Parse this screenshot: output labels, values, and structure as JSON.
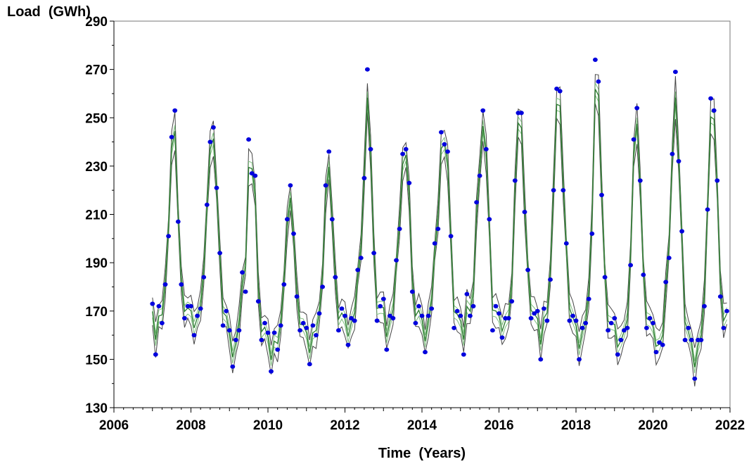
{
  "chart_data": {
    "type": "line",
    "ylabel": "Load  (GWh)",
    "xlabel": "Time  (Years)",
    "xlim": [
      2006,
      2022
    ],
    "ylim": [
      130,
      290
    ],
    "x_ticks": [
      2006,
      2008,
      2010,
      2012,
      2014,
      2016,
      2018,
      2020,
      2022
    ],
    "y_ticks": [
      130,
      150,
      170,
      190,
      210,
      230,
      250,
      270,
      290
    ],
    "grid": false,
    "colors": {
      "points": "#0000dd",
      "bands": "#444444",
      "fitted": "#2e7d32",
      "inner_band": "#7fbf7f"
    },
    "series": [
      {
        "style": "points",
        "x": [
          2007.0,
          2007.083,
          2007.167,
          2007.25,
          2007.333,
          2007.417,
          2007.5,
          2007.583,
          2007.667,
          2007.75,
          2007.833,
          2007.917,
          2008.0,
          2008.083,
          2008.167,
          2008.25,
          2008.333,
          2008.417,
          2008.5,
          2008.583,
          2008.667,
          2008.75,
          2008.833,
          2008.917,
          2009.0,
          2009.083,
          2009.167,
          2009.25,
          2009.333,
          2009.417,
          2009.5,
          2009.583,
          2009.667,
          2009.75,
          2009.833,
          2009.917,
          2010.0,
          2010.083,
          2010.167,
          2010.25,
          2010.333,
          2010.417,
          2010.5,
          2010.583,
          2010.667,
          2010.75,
          2010.833,
          2010.917,
          2011.0,
          2011.083,
          2011.167,
          2011.25,
          2011.333,
          2011.417,
          2011.5,
          2011.583,
          2011.667,
          2011.75,
          2011.833,
          2011.917,
          2012.0,
          2012.083,
          2012.167,
          2012.25,
          2012.333,
          2012.417,
          2012.5,
          2012.583,
          2012.667,
          2012.75,
          2012.833,
          2012.917,
          2013.0,
          2013.083,
          2013.167,
          2013.25,
          2013.333,
          2013.417,
          2013.5,
          2013.583,
          2013.667,
          2013.75,
          2013.833,
          2013.917,
          2014.0,
          2014.083,
          2014.167,
          2014.25,
          2014.333,
          2014.417,
          2014.5,
          2014.583,
          2014.667,
          2014.75,
          2014.833,
          2014.917,
          2015.0,
          2015.083,
          2015.167,
          2015.25,
          2015.333,
          2015.417,
          2015.5,
          2015.583,
          2015.667,
          2015.75,
          2015.833,
          2015.917,
          2016.0,
          2016.083,
          2016.167,
          2016.25,
          2016.333,
          2016.417,
          2016.5,
          2016.583,
          2016.667,
          2016.75,
          2016.833,
          2016.917,
          2017.0,
          2017.083,
          2017.167,
          2017.25,
          2017.333,
          2017.417,
          2017.5,
          2017.583,
          2017.667,
          2017.75,
          2017.833,
          2017.917,
          2018.0,
          2018.083,
          2018.167,
          2018.25,
          2018.333,
          2018.417,
          2018.5,
          2018.583,
          2018.667,
          2018.75,
          2018.833,
          2018.917,
          2019.0,
          2019.083,
          2019.167,
          2019.25,
          2019.333,
          2019.417,
          2019.5,
          2019.583,
          2019.667,
          2019.75,
          2019.833,
          2019.917,
          2020.0,
          2020.083,
          2020.167,
          2020.25,
          2020.333,
          2020.417,
          2020.5,
          2020.583,
          2020.667,
          2020.75,
          2020.833,
          2020.917,
          2021.0,
          2021.083,
          2021.167,
          2021.25,
          2021.333,
          2021.417,
          2021.5,
          2021.583,
          2021.667,
          2021.75,
          2021.833,
          2021.917
        ],
        "y": [
          173,
          152,
          172,
          165,
          181,
          201,
          242,
          253,
          207,
          181,
          167,
          172,
          172,
          160,
          168,
          171,
          184,
          214,
          240,
          246,
          221,
          194,
          164,
          170,
          162,
          147,
          158,
          162,
          186,
          178,
          241,
          227,
          226,
          174,
          158,
          165,
          161,
          145,
          161,
          154,
          164,
          181,
          208,
          222,
          202,
          176,
          162,
          165,
          163,
          148,
          164,
          160,
          169,
          180,
          222,
          236,
          208,
          184,
          162,
          171,
          168,
          156,
          167,
          166,
          187,
          192,
          225,
          270,
          237,
          194,
          166,
          172,
          175,
          154,
          168,
          167,
          191,
          204,
          235,
          237,
          223,
          178,
          165,
          172,
          168,
          153,
          168,
          171,
          198,
          204,
          244,
          239,
          236,
          201,
          163,
          170,
          168,
          152,
          177,
          168,
          172,
          215,
          226,
          253,
          237,
          208,
          162,
          172,
          169,
          159,
          167,
          167,
          174,
          224,
          252,
          252,
          211,
          187,
          167,
          169,
          170,
          150,
          171,
          166,
          183,
          220,
          262,
          261,
          220,
          198,
          166,
          168,
          166,
          150,
          163,
          165,
          175,
          202,
          274,
          265,
          218,
          184,
          162,
          165,
          167,
          152,
          158,
          162,
          163,
          189,
          241,
          254,
          224,
          185,
          163,
          167,
          165,
          153,
          157,
          156,
          182,
          192,
          235,
          269,
          232,
          203,
          158,
          163,
          158,
          142,
          158,
          158,
          172,
          212,
          258,
          253,
          224,
          176,
          163,
          170
        ]
      },
      {
        "style": "upper-band"
      },
      {
        "style": "fitted"
      },
      {
        "style": "lower-band"
      }
    ]
  }
}
